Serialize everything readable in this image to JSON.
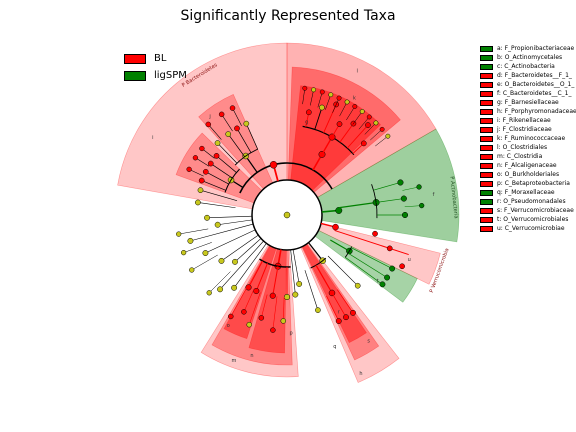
{
  "title": "Significantly Represented Taxa",
  "colors": {
    "BL": "#ff0000",
    "ligSPM": "#008000",
    "node_neutral": "#c8c81e"
  },
  "legend_groups": [
    {
      "label": "BL",
      "color": "#ff0000"
    },
    {
      "label": "ligSPM",
      "color": "#008000"
    }
  ],
  "chart_data": {
    "type": "cladogram",
    "clade_labels": [
      "P Bacteroidetes",
      "P Actinobacteria",
      "P Verrucomicrobia",
      "m",
      "n",
      "o",
      "q",
      "r",
      "s",
      "t",
      "u",
      "f",
      "g",
      "h",
      "i",
      "j",
      "k",
      "l",
      "p"
    ],
    "taxa": [
      {
        "key": "a",
        "name": "F_Propionibacteriaceae",
        "group": "ligSPM"
      },
      {
        "key": "b",
        "name": "O_Actinomycetales",
        "group": "ligSPM"
      },
      {
        "key": "c",
        "name": "C_Actinobacteria",
        "group": "ligSPM"
      },
      {
        "key": "d",
        "name": "F_Bacteroidetes__F_1_",
        "group": "BL"
      },
      {
        "key": "e",
        "name": "O_Bacteroidetes__O_1_",
        "group": "BL"
      },
      {
        "key": "f",
        "name": "C_Bacteroidetes__C_1_",
        "group": "BL"
      },
      {
        "key": "g",
        "name": "F_Barnesiellaceae",
        "group": "BL"
      },
      {
        "key": "h",
        "name": "F_Porphyromonadaceae",
        "group": "BL"
      },
      {
        "key": "i",
        "name": "F_Rikenellaceae",
        "group": "BL"
      },
      {
        "key": "j",
        "name": "F_Clostridiaceae",
        "group": "BL"
      },
      {
        "key": "k",
        "name": "F_Ruminococcaceae",
        "group": "BL"
      },
      {
        "key": "l",
        "name": "O_Clostridiales",
        "group": "BL"
      },
      {
        "key": "m",
        "name": "C_Clostridia",
        "group": "BL"
      },
      {
        "key": "n",
        "name": "F_Alcaligenaceae",
        "group": "BL"
      },
      {
        "key": "o",
        "name": "O_Burkholderiales",
        "group": "BL"
      },
      {
        "key": "p",
        "name": "C_Betaproteobacteria",
        "group": "BL"
      },
      {
        "key": "q",
        "name": "F_Moraxellaceae",
        "group": "ligSPM"
      },
      {
        "key": "r",
        "name": "O_Pseudomonadales",
        "group": "ligSPM"
      },
      {
        "key": "s",
        "name": "F_Verrucomicrobiaceae",
        "group": "BL"
      },
      {
        "key": "t",
        "name": "O_Verrucomicrobiales",
        "group": "BL"
      },
      {
        "key": "u",
        "name": "C_Verrucomicrobiae",
        "group": "BL"
      }
    ]
  }
}
